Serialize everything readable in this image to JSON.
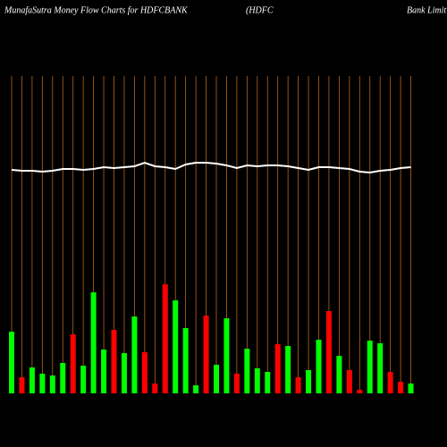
{
  "chart_data": {
    "type": "bar",
    "title": "MunafaSutra  Money Flow  Charts for HDFCBANK",
    "subtitle": "(HDFC",
    "subtitle2": "Bank Limit",
    "categories": [
      null,
      null,
      null,
      null,
      null,
      null,
      null,
      null,
      null,
      null,
      null,
      null,
      null,
      null,
      null,
      null,
      null,
      null,
      null,
      null,
      null,
      null,
      null,
      null,
      null,
      null,
      null,
      null,
      null,
      null,
      null,
      null,
      null,
      null,
      null,
      null,
      null,
      null,
      null,
      null
    ],
    "bars": {
      "values": [
        69,
        18,
        29,
        22,
        20,
        34,
        66,
        31,
        113,
        49,
        71,
        45,
        86,
        46,
        11,
        122,
        104,
        73,
        9,
        87,
        32,
        84,
        22,
        50,
        28,
        24,
        55,
        53,
        18,
        26,
        60,
        92,
        42,
        26,
        4,
        59,
        56,
        24,
        13,
        11
      ],
      "colors": [
        "#00ff00",
        "#ff0000",
        "#00ff00",
        "#00ff00",
        "#00ff00",
        "#00ff00",
        "#ff0000",
        "#00ff00",
        "#00ff00",
        "#00ff00",
        "#ff0000",
        "#00ff00",
        "#00ff00",
        "#ff0000",
        "#ff0000",
        "#ff0000",
        "#00ff00",
        "#00ff00",
        "#00ff00",
        "#ff0000",
        "#00ff00",
        "#00ff00",
        "#ff0000",
        "#00ff00",
        "#00ff00",
        "#00ff00",
        "#ff0000",
        "#00ff00",
        "#ff0000",
        "#00ff00",
        "#00ff00",
        "#ff0000",
        "#00ff00",
        "#ff0000",
        "#ff0000",
        "#00ff00",
        "#00ff00",
        "#ff0000",
        "#ff0000",
        "#00ff00"
      ]
    },
    "line": {
      "color": "#ffffff",
      "values": [
        250,
        249,
        249,
        248,
        249,
        251,
        251,
        250,
        251,
        253,
        252,
        253,
        254,
        258,
        254,
        253,
        251,
        256,
        258,
        258,
        257,
        255,
        252,
        255,
        254,
        255,
        255,
        254,
        252,
        250,
        253,
        253,
        252,
        251,
        248,
        247,
        249,
        250,
        252,
        253
      ]
    },
    "grid_color": "#b8651b"
  }
}
